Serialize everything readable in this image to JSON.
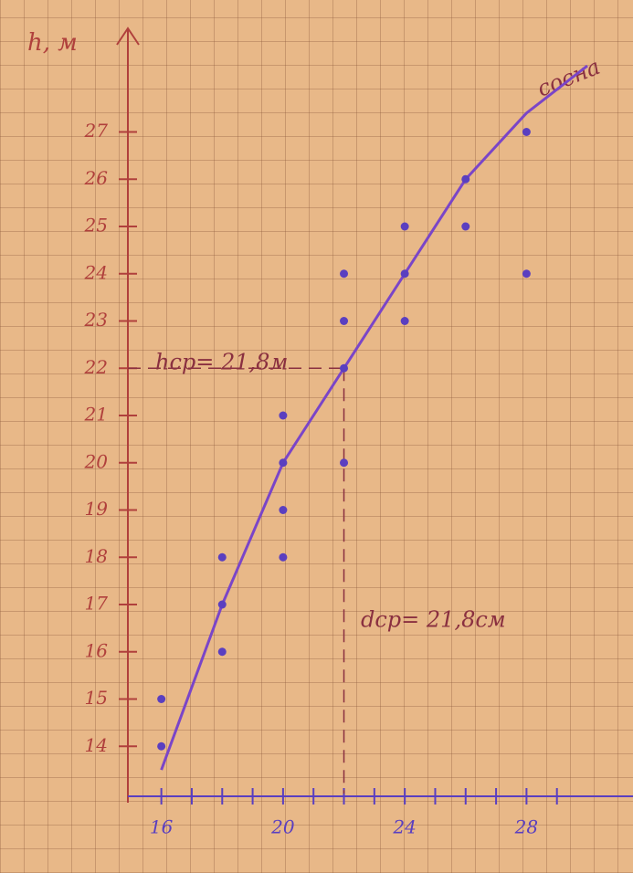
{
  "chart_data": {
    "type": "scatter",
    "ylabel": "h, м",
    "xlim": [
      14.9,
      31.5
    ],
    "ylim": [
      13,
      29
    ],
    "xticks": [
      16,
      20,
      24,
      28
    ],
    "xminor": [
      17,
      18,
      19,
      21,
      22,
      23,
      25,
      26,
      27,
      29
    ],
    "yticks": [
      14,
      15,
      16,
      17,
      18,
      19,
      20,
      21,
      22,
      23,
      24,
      25,
      26,
      27
    ],
    "points": {
      "color": "#5a3fc0",
      "x": [
        16,
        16,
        18,
        18,
        18,
        20,
        20,
        20,
        20,
        22,
        22,
        22,
        22,
        24,
        24,
        24,
        26,
        26,
        28,
        28
      ],
      "y": [
        15,
        14,
        18,
        17,
        16,
        21,
        20,
        19,
        18,
        24,
        23,
        22,
        20,
        25,
        24,
        23,
        26,
        25,
        27,
        24
      ]
    },
    "curve": {
      "label": "сосна",
      "color": "#7a45c8",
      "x": [
        16,
        18,
        20,
        22,
        24,
        26,
        28,
        30
      ],
      "y": [
        13.5,
        17,
        20,
        22,
        24,
        26,
        27.4,
        28.4
      ]
    },
    "guide": {
      "x": 22,
      "y": 22
    },
    "annotations": [
      "hср= 21,8м",
      "dср= 21,8см"
    ]
  }
}
